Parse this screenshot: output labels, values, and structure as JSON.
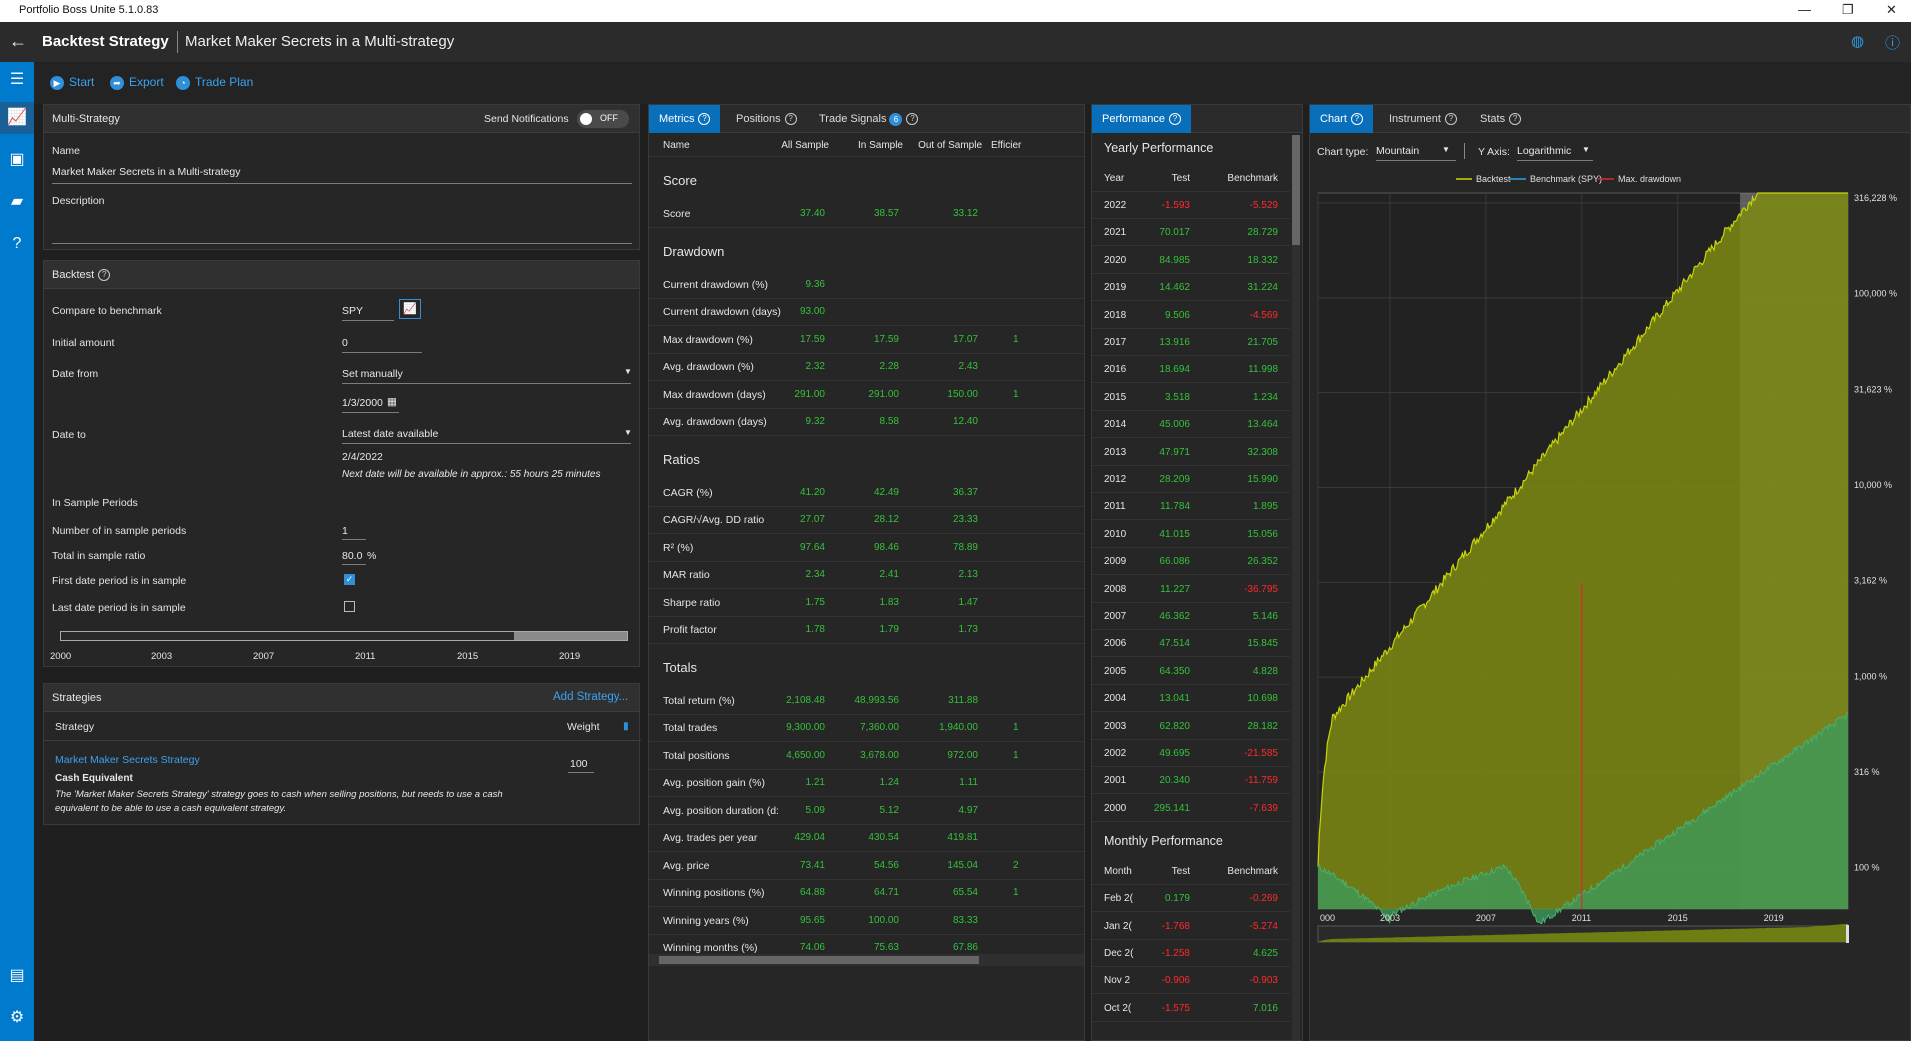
{
  "app": {
    "title": "Portfolio Boss Unite 5.1.0.83",
    "window_controls": [
      "—",
      "❐",
      "✕"
    ]
  },
  "header": {
    "title": "Backtest Strategy",
    "subtitle": "Market Maker Secrets in a Multi-strategy"
  },
  "toolbar": {
    "start": "Start",
    "export": "Export",
    "trade_plan": "Trade Plan"
  },
  "multi": {
    "heading": "Multi-Strategy",
    "send_notifications": "Send Notifications",
    "toggle": "OFF",
    "name_label": "Name",
    "name_value": "Market Maker Secrets in a Multi-strategy",
    "description_label": "Description"
  },
  "backtest": {
    "heading": "Backtest",
    "compare_label": "Compare to benchmark",
    "compare_value": "SPY",
    "initial_label": "Initial amount",
    "initial_value": "0",
    "date_from_label": "Date from",
    "date_from_mode": "Set manually",
    "date_from_value": "1/3/2000",
    "date_to_label": "Date to",
    "date_to_mode": "Latest date available",
    "date_to_value": "2/4/2022",
    "next_date_note": "Next date will be available in approx.: 55 hours 25 minutes",
    "insample_heading": "In Sample Periods",
    "num_periods_label": "Number of in sample periods",
    "num_periods_value": "1",
    "total_ratio_label": "Total in sample ratio",
    "total_ratio_value": "80.0",
    "total_ratio_unit": "%",
    "first_label": "First date period is in sample",
    "last_label": "Last date period is in sample",
    "timeline_ticks": [
      "2000",
      "2003",
      "2007",
      "2011",
      "2015",
      "2019"
    ],
    "in_sample_fraction": 0.8
  },
  "strategies": {
    "heading": "Strategies",
    "add": "Add Strategy...",
    "col_strategy": "Strategy",
    "col_weight": "Weight",
    "item_name": "Market Maker Secrets Strategy",
    "item_weight": "100",
    "cash_heading": "Cash Equivalent",
    "cash_note_1": "The 'Market Maker Secrets Strategy' strategy goes to cash when selling positions, but needs to use a cash",
    "cash_note_2": "equivalent to be able to use a cash equivalent strategy."
  },
  "metrics": {
    "tabs": [
      "Metrics",
      "Positions",
      "Trade Signals"
    ],
    "signals_badge": "6",
    "columns": [
      "Name",
      "All Sample",
      "In Sample",
      "Out of Sample",
      "Efficier"
    ],
    "sections": [
      {
        "title": "Score",
        "rows": [
          [
            "Score",
            "37.40",
            "38.57",
            "33.12",
            ""
          ]
        ]
      },
      {
        "title": "Drawdown",
        "rows": [
          [
            "Current drawdown (%)",
            "9.36",
            "",
            "",
            ""
          ],
          [
            "Current drawdown (days)",
            "93.00",
            "",
            "",
            ""
          ],
          [
            "Max drawdown (%)",
            "17.59",
            "17.59",
            "17.07",
            "1"
          ],
          [
            "Avg. drawdown (%)",
            "2.32",
            "2.28",
            "2.43",
            ""
          ],
          [
            "Max drawdown (days)",
            "291.00",
            "291.00",
            "150.00",
            "1"
          ],
          [
            "Avg. drawdown (days)",
            "9.32",
            "8.58",
            "12.40",
            ""
          ]
        ]
      },
      {
        "title": "Ratios",
        "rows": [
          [
            "CAGR (%)",
            "41.20",
            "42.49",
            "36.37",
            ""
          ],
          [
            "CAGR/√Avg. DD ratio",
            "27.07",
            "28.12",
            "23.33",
            ""
          ],
          [
            "R² (%)",
            "97.64",
            "98.46",
            "78.89",
            ""
          ],
          [
            "MAR ratio",
            "2.34",
            "2.41",
            "2.13",
            ""
          ],
          [
            "Sharpe ratio",
            "1.75",
            "1.83",
            "1.47",
            ""
          ],
          [
            "Profit factor",
            "1.78",
            "1.79",
            "1.73",
            ""
          ]
        ]
      },
      {
        "title": "Totals",
        "rows": [
          [
            "Total return (%)",
            "2,108.48",
            "48,993.56",
            "311.88",
            ""
          ],
          [
            "Total trades",
            "9,300.00",
            "7,360.00",
            "1,940.00",
            "1"
          ],
          [
            "Total positions",
            "4,650.00",
            "3,678.00",
            "972.00",
            "1"
          ],
          [
            "Avg. position gain (%)",
            "1.21",
            "1.24",
            "1.11",
            ""
          ],
          [
            "Avg. position duration (d:",
            "5.09",
            "5.12",
            "4.97",
            ""
          ],
          [
            "Avg. trades per year",
            "429.04",
            "430.54",
            "419.81",
            ""
          ],
          [
            "Avg. price",
            "73.41",
            "54.56",
            "145.04",
            "2"
          ],
          [
            "Winning positions (%)",
            "64.88",
            "64.71",
            "65.54",
            "1"
          ],
          [
            "Winning years (%)",
            "95.65",
            "100.00",
            "83.33",
            ""
          ],
          [
            "Winning months (%)",
            "74.06",
            "75.63",
            "67.86",
            ""
          ]
        ]
      }
    ]
  },
  "performance": {
    "tab": "Performance",
    "yearly_title": "Yearly Performance",
    "columns": [
      "Year",
      "Test",
      "Benchmark"
    ],
    "yearly": [
      [
        "2022",
        "-1.593",
        "-5.529"
      ],
      [
        "2021",
        "70.017",
        "28.729"
      ],
      [
        "2020",
        "84.985",
        "18.332"
      ],
      [
        "2019",
        "14.462",
        "31.224"
      ],
      [
        "2018",
        "9.506",
        "-4.569"
      ],
      [
        "2017",
        "13.916",
        "21.705"
      ],
      [
        "2016",
        "18.694",
        "11.998"
      ],
      [
        "2015",
        "3.518",
        "1.234"
      ],
      [
        "2014",
        "45.006",
        "13.464"
      ],
      [
        "2013",
        "47.971",
        "32.308"
      ],
      [
        "2012",
        "28.209",
        "15.990"
      ],
      [
        "2011",
        "11.784",
        "1.895"
      ],
      [
        "2010",
        "41.015",
        "15.056"
      ],
      [
        "2009",
        "66.086",
        "26.352"
      ],
      [
        "2008",
        "11.227",
        "-36.795"
      ],
      [
        "2007",
        "46.362",
        "5.146"
      ],
      [
        "2006",
        "47.514",
        "15.845"
      ],
      [
        "2005",
        "64.350",
        "4.828"
      ],
      [
        "2004",
        "13.041",
        "10.698"
      ],
      [
        "2003",
        "62.820",
        "28.182"
      ],
      [
        "2002",
        "49.695",
        "-21.585"
      ],
      [
        "2001",
        "20.340",
        "-11.759"
      ],
      [
        "2000",
        "295.141",
        "-7.639"
      ]
    ],
    "monthly_title": "Monthly Performance",
    "monthly_columns": [
      "Month",
      "Test",
      "Benchmark"
    ],
    "monthly": [
      [
        "Feb 2(",
        "0.179",
        "-0.269"
      ],
      [
        "Jan 2(",
        "-1.768",
        "-5.274"
      ],
      [
        "Dec 2(",
        "-1.258",
        "4.625"
      ],
      [
        "Nov 2",
        "-0.906",
        "-0.903"
      ],
      [
        "Oct 2(",
        "-1.575",
        "7.016"
      ]
    ]
  },
  "chart": {
    "tabs": [
      "Chart",
      "Instrument",
      "Stats"
    ],
    "type_label": "Chart type:",
    "type_value": "Mountain",
    "yaxis_label": "Y Axis:",
    "yaxis_value": "Logarithmic",
    "chart_data": {
      "type": "area",
      "title": "",
      "x_ticks": [
        "000",
        "2003",
        "2007",
        "2011",
        "2015",
        "2019"
      ],
      "y_scale": "log",
      "y_ticks": [
        "316,228 %",
        "100,000 %",
        "31,623 %",
        "10,000 %",
        "3,162 %",
        "1,000 %",
        "316 %",
        "100 %"
      ],
      "series": [
        {
          "name": "Backtest",
          "color": "#c8d40c"
        },
        {
          "name": "Benchmark (SPY)",
          "color": "#2aa0e8"
        },
        {
          "name": "Max. drawdown",
          "color": "#d92a2a"
        }
      ],
      "max_drawdown_year": 2011,
      "out_of_sample_start_year": 2017.6
    }
  }
}
